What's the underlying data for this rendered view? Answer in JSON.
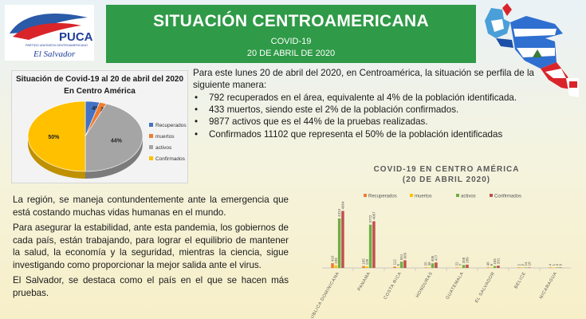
{
  "logo": {
    "brand": "PUCA",
    "subtitle": "PARTIDO UNIONISTA CENTROAMERICANO",
    "country": "El Salvador"
  },
  "header": {
    "title": "SITUACIÓN CENTROAMERICANA",
    "subtitle": "COVID-19",
    "date": "20  DE ABRIL DE 2020"
  },
  "intro": "Para este lunes 20 de abril del 2020, en Centroamérica, la situación se perfila de la siguiente manera:",
  "bullets": [
    "792 recuperados en el área, equivalente al 4% de la población identificada.",
    "433 muertos, siendo este el 2% de la población confirmados.",
    "9877 activos que es el 44% de la pruebas realizadas.",
    "Confirmados 11102 que representa el 50% de la población identificadas"
  ],
  "paragraphs": [
    "La región, se maneja contundentemente ante la emergencia que está costando muchas vidas humanas en el mundo.",
    "Para asegurar la estabilidad, ante esta pandemia, los gobiernos de cada país, están trabajando, para lograr el equilibrio de mantener la salud, la economía y la seguridad, mientras la ciencia, sigue investigando como proporcionar la mejor salida ante el virus.",
    "El Salvador, se destaca como el país en el que se hacen más pruebas."
  ],
  "colors": {
    "recuperados": "#4472c4",
    "muertos": "#ed7d31",
    "activos": "#a5a5a5",
    "confirmados": "#ffc000",
    "bar_recuperados": "#ed7d31",
    "bar_muertos": "#ffc000",
    "bar_activos": "#70ad47",
    "bar_confirmados": "#c0504d"
  },
  "chart_data": [
    {
      "type": "pie",
      "title": "Situación  de Covid-19  al 20 de abril del 2020 En Centro América",
      "categories": [
        "Recuperados",
        "muertos",
        "activos",
        "Confirmados"
      ],
      "values": [
        4,
        2,
        44,
        50
      ],
      "data_labels": [
        "4%",
        "2%",
        "44%",
        "50%"
      ],
      "legend": "right"
    },
    {
      "type": "bar",
      "title": "COVID-19 EN CENTRO AMÉRICA",
      "subtitle": "(20 DE ABRIL 2020)",
      "categories": [
        "REPUBLICA DOMINICANA",
        "PANAMA",
        "COSTA RICA",
        "HONDURAS",
        "GUATEMALA",
        "EL SALVADOR",
        "BELICE",
        "NICARAGUA"
      ],
      "series": [
        {
          "name": "Recuperados",
          "values": [
            416,
            165,
            112,
            25,
            22,
            46,
            2,
            4
          ],
          "labels": [
            "416",
            "165",
            "112",
            "25",
            "22",
            "46",
            "2",
            "4"
          ]
        },
        {
          "name": "muertos",
          "values": [
            235,
            126,
            6,
            46,
            7,
            8,
            2,
            1
          ],
          "labels": [
            "235",
            "126",
            "6",
            "46",
            "7",
            "8",
            "2",
            "1"
          ]
        },
        {
          "name": "activos",
          "values": [
            4313,
            3772,
            551,
            406,
            258,
            165,
            14,
            4
          ],
          "labels": [
            "4313",
            "3772",
            "551",
            "406",
            "258",
            "165",
            "14",
            "4"
          ]
        },
        {
          "name": "Confirmados",
          "values": [
            4964,
            4067,
            669,
            477,
            289,
            201,
            18,
            9
          ],
          "labels": [
            "4964",
            "4067",
            "669",
            "477",
            "289",
            "201",
            "18",
            "9"
          ]
        }
      ],
      "ylim": [
        0,
        5000
      ],
      "legend": "top"
    }
  ]
}
